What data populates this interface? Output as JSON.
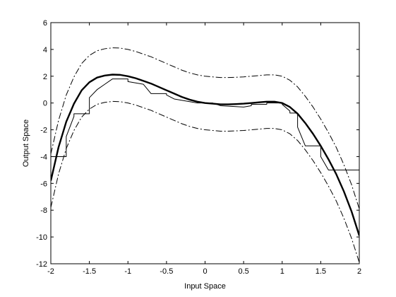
{
  "chart_data": {
    "type": "line",
    "title": "",
    "xlabel": "Input Space",
    "ylabel": "Output Space",
    "xlim": [
      -2,
      2
    ],
    "ylim": [
      -12,
      6
    ],
    "xticks": [
      -2,
      -1.5,
      -1,
      -0.5,
      0,
      0.5,
      1,
      1.5,
      2
    ],
    "xtick_labels": [
      "-2",
      "-1.5",
      "-1",
      "-0.5",
      "0",
      "0.5",
      "1",
      "1.5",
      "2"
    ],
    "yticks": [
      -12,
      -10,
      -8,
      -6,
      -4,
      -2,
      0,
      2,
      4,
      6
    ],
    "ytick_labels": [
      "-12",
      "-10",
      "-8",
      "-6",
      "-4",
      "-2",
      "0",
      "2",
      "4",
      "6"
    ],
    "grid": false,
    "box": true,
    "series": [
      {
        "style": "solid-thick",
        "color": "#000000",
        "x": [
          -2.0,
          -1.9,
          -1.8,
          -1.7,
          -1.6,
          -1.5,
          -1.4,
          -1.3,
          -1.2,
          -1.1,
          -1.0,
          -0.9,
          -0.8,
          -0.7,
          -0.6,
          -0.5,
          -0.4,
          -0.3,
          -0.2,
          -0.1,
          0.0,
          0.1,
          0.2,
          0.3,
          0.4,
          0.5,
          0.6,
          0.7,
          0.8,
          0.9,
          1.0,
          1.1,
          1.2,
          1.3,
          1.4,
          1.5,
          1.6,
          1.7,
          1.8,
          1.9,
          2.0
        ],
        "y": [
          -5.8,
          -3.3,
          -1.4,
          -0.05,
          0.95,
          1.55,
          1.9,
          2.05,
          2.12,
          2.1,
          2.0,
          1.85,
          1.65,
          1.45,
          1.2,
          0.95,
          0.7,
          0.45,
          0.25,
          0.1,
          0.0,
          -0.05,
          -0.1,
          -0.1,
          -0.08,
          -0.05,
          0.0,
          0.05,
          0.1,
          0.1,
          0.0,
          -0.3,
          -0.8,
          -1.5,
          -2.3,
          -3.2,
          -4.2,
          -5.3,
          -6.6,
          -8.1,
          -9.9
        ]
      },
      {
        "style": "dash-dot-upper",
        "color": "#000000",
        "x": [
          -2.0,
          -1.9,
          -1.8,
          -1.7,
          -1.6,
          -1.5,
          -1.4,
          -1.3,
          -1.2,
          -1.1,
          -1.0,
          -0.9,
          -0.8,
          -0.7,
          -0.6,
          -0.5,
          -0.4,
          -0.3,
          -0.2,
          -0.1,
          0.0,
          0.1,
          0.2,
          0.3,
          0.4,
          0.5,
          0.6,
          0.7,
          0.8,
          0.9,
          1.0,
          1.1,
          1.2,
          1.3,
          1.4,
          1.5,
          1.6,
          1.7,
          1.8,
          1.9,
          2.0
        ],
        "y": [
          -3.8,
          -1.3,
          0.6,
          1.95,
          2.95,
          3.55,
          3.9,
          4.05,
          4.12,
          4.1,
          4.0,
          3.85,
          3.65,
          3.45,
          3.2,
          2.95,
          2.7,
          2.45,
          2.25,
          2.1,
          2.0,
          1.95,
          1.9,
          1.9,
          1.92,
          1.95,
          2.0,
          2.05,
          2.1,
          2.1,
          2.0,
          1.7,
          1.2,
          0.5,
          -0.3,
          -1.2,
          -2.2,
          -3.3,
          -4.6,
          -6.1,
          -7.9
        ]
      },
      {
        "style": "dash-dot-lower",
        "color": "#000000",
        "x": [
          -2.0,
          -1.9,
          -1.8,
          -1.7,
          -1.6,
          -1.5,
          -1.4,
          -1.3,
          -1.2,
          -1.1,
          -1.0,
          -0.9,
          -0.8,
          -0.7,
          -0.6,
          -0.5,
          -0.4,
          -0.3,
          -0.2,
          -0.1,
          0.0,
          0.1,
          0.2,
          0.3,
          0.4,
          0.5,
          0.6,
          0.7,
          0.8,
          0.9,
          1.0,
          1.1,
          1.2,
          1.3,
          1.4,
          1.5,
          1.6,
          1.7,
          1.8,
          1.9,
          2.0
        ],
        "y": [
          -7.8,
          -5.3,
          -3.4,
          -2.05,
          -1.05,
          -0.45,
          -0.1,
          0.05,
          0.12,
          0.1,
          0.0,
          -0.15,
          -0.35,
          -0.55,
          -0.8,
          -1.05,
          -1.3,
          -1.55,
          -1.75,
          -1.9,
          -2.0,
          -2.05,
          -2.1,
          -2.1,
          -2.08,
          -2.05,
          -2.0,
          -1.95,
          -1.9,
          -1.9,
          -2.0,
          -2.3,
          -2.8,
          -3.5,
          -4.3,
          -5.2,
          -6.2,
          -7.3,
          -8.6,
          -10.1,
          -11.9
        ]
      },
      {
        "style": "staircase-thin",
        "color": "#000000",
        "x": [
          -2.0,
          -1.8,
          -1.8,
          -1.7,
          -1.7,
          -1.5,
          -1.5,
          -1.4,
          -1.4,
          -1.3,
          -1.3,
          -1.2,
          -1.2,
          -1.0,
          -1.0,
          -0.9,
          -0.9,
          -0.8,
          -0.8,
          -0.7,
          -0.7,
          -0.5,
          -0.5,
          -0.4,
          -0.4,
          -0.3,
          -0.3,
          -0.1,
          -0.1,
          0.1,
          0.1,
          0.2,
          0.2,
          0.5,
          0.5,
          0.6,
          0.6,
          0.8,
          0.8,
          1.0,
          1.0,
          1.1,
          1.1,
          1.2,
          1.2,
          1.3,
          1.3,
          1.5,
          1.5,
          1.6,
          1.6,
          2.0
        ],
        "y": [
          -4.0,
          -4.0,
          -2.5,
          -1.0,
          -0.8,
          -0.8,
          0.4,
          1.0,
          1.0,
          1.4,
          1.4,
          1.8,
          1.8,
          1.8,
          1.6,
          1.5,
          1.5,
          1.4,
          1.4,
          0.7,
          0.7,
          0.7,
          0.6,
          0.3,
          0.3,
          0.2,
          0.2,
          0.0,
          0.0,
          0.0,
          0.0,
          -0.2,
          -0.2,
          -0.3,
          -0.3,
          -0.2,
          -0.1,
          -0.1,
          0.0,
          0.0,
          -0.1,
          -0.6,
          -0.75,
          -0.75,
          -1.8,
          -3.2,
          -3.2,
          -3.2,
          -4.0,
          -5.0,
          -5.0,
          -5.0
        ]
      }
    ]
  }
}
